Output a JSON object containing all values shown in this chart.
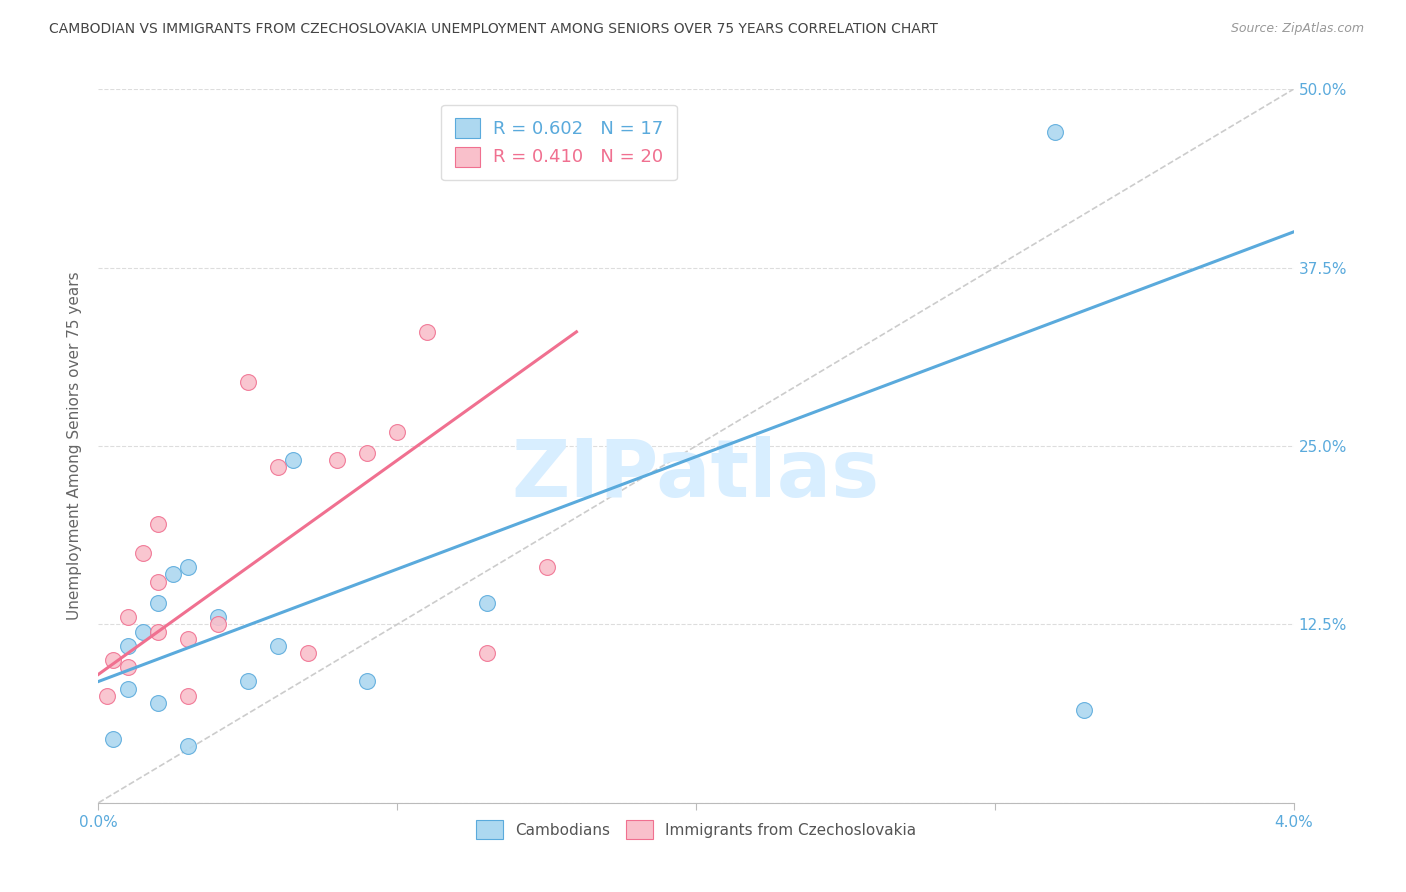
{
  "title": "CAMBODIAN VS IMMIGRANTS FROM CZECHOSLOVAKIA UNEMPLOYMENT AMONG SENIORS OVER 75 YEARS CORRELATION CHART",
  "source": "Source: ZipAtlas.com",
  "xlabel": "",
  "ylabel": "Unemployment Among Seniors over 75 years",
  "xlim": [
    0.0,
    0.04
  ],
  "ylim": [
    0.0,
    0.5
  ],
  "yticks": [
    0.0,
    0.125,
    0.25,
    0.375,
    0.5
  ],
  "ytick_labels": [
    "",
    "12.5%",
    "25.0%",
    "37.5%",
    "50.0%"
  ],
  "xticks": [
    0.0,
    0.01,
    0.02,
    0.03,
    0.04
  ],
  "xtick_labels": [
    "0.0%",
    "",
    "",
    "",
    "4.0%"
  ],
  "legend_r_cambodian": "0.602",
  "legend_n_cambodian": "17",
  "legend_r_czech": "0.410",
  "legend_n_czech": "20",
  "color_cambodian": "#ADD8F0",
  "color_czech": "#F9C0CB",
  "color_line_cambodian": "#5AAADC",
  "color_line_czech": "#F07090",
  "color_diag": "#CCCCCC",
  "color_title": "#444444",
  "color_right_axis": "#5AAADC",
  "color_bottom_axis": "#5AAADC",
  "watermark_text": "ZIPatlas",
  "watermark_color": "#D8EEFF",
  "cambodian_x": [
    0.0005,
    0.001,
    0.001,
    0.0015,
    0.002,
    0.002,
    0.0025,
    0.003,
    0.003,
    0.004,
    0.005,
    0.006,
    0.0065,
    0.009,
    0.013,
    0.032,
    0.033
  ],
  "cambodian_y": [
    0.045,
    0.08,
    0.11,
    0.12,
    0.07,
    0.14,
    0.16,
    0.04,
    0.165,
    0.13,
    0.085,
    0.11,
    0.24,
    0.085,
    0.14,
    0.47,
    0.065
  ],
  "czech_x": [
    0.0003,
    0.0005,
    0.001,
    0.001,
    0.0015,
    0.002,
    0.002,
    0.002,
    0.003,
    0.003,
    0.004,
    0.005,
    0.006,
    0.007,
    0.008,
    0.009,
    0.01,
    0.011,
    0.013,
    0.015
  ],
  "czech_y": [
    0.075,
    0.1,
    0.095,
    0.13,
    0.175,
    0.12,
    0.155,
    0.195,
    0.075,
    0.115,
    0.125,
    0.295,
    0.235,
    0.105,
    0.24,
    0.245,
    0.26,
    0.33,
    0.105,
    0.165
  ],
  "cam_line_x": [
    0.0,
    0.04
  ],
  "cam_line_y": [
    0.085,
    0.4
  ],
  "cz_line_x": [
    0.0,
    0.016
  ],
  "cz_line_y": [
    0.09,
    0.33
  ]
}
